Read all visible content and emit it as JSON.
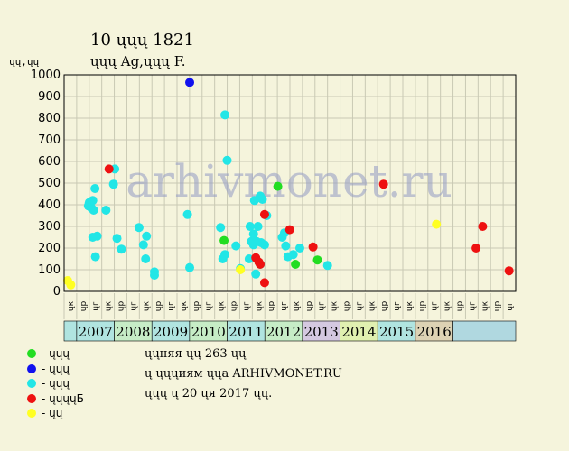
{
  "header": {
    "title": "10 ųųų 1821",
    "subtitle": "ųųų Ag,ųųų F.",
    "ylabel": "ųų,ųų"
  },
  "notes": [
    "ųųняя ųų 263 ųų",
    "ų ųųųиям ųųа ARHIVMONET.RU",
    "ųųų ų 20 ųя 2017 ųų."
  ],
  "legend": [
    {
      "label": "- ųųų",
      "color": "#22dd22"
    },
    {
      "label": "- ųųų",
      "color": "#1111ee"
    },
    {
      "label": "- ųųų",
      "color": "#22e6e6"
    },
    {
      "label": "- ųųųųБ",
      "color": "#ee1111"
    },
    {
      "label": "- ųų",
      "color": "#ffff22"
    }
  ],
  "chart_data": {
    "type": "scatter",
    "title": "10 ųųų 1821",
    "subtitle": "ųųų Ag,ųųų F.",
    "ylabel": "ųų,ųų",
    "ylim": [
      0,
      1000
    ],
    "yticks": [
      0,
      100,
      200,
      300,
      400,
      500,
      600,
      700,
      800,
      900,
      1000
    ],
    "grid": true,
    "watermark": "arhivmonet.ru",
    "quarter_labels": [
      "ųк",
      "ųр",
      "ųг",
      "ųк",
      "ųр",
      "ųг",
      "ųк",
      "ųр",
      "ųг",
      "ųк",
      "ųр",
      "ųг",
      "ųк",
      "ųр",
      "ųг",
      "ųк",
      "ųр",
      "ųг",
      "ųк",
      "ųр",
      "ųг",
      "ųк",
      "ųр",
      "ųг",
      "ųк",
      "ųр",
      "ųг",
      "ųк",
      "ųр",
      "ųг",
      "ųк",
      "ųр",
      "ųг",
      "ųк",
      "ųр",
      "ųг"
    ],
    "years": [
      {
        "label": "2007",
        "color": "#b0e4e0"
      },
      {
        "label": "2008",
        "color": "#c6ecc6"
      },
      {
        "label": "2009",
        "color": "#b0e4e0"
      },
      {
        "label": "2010",
        "color": "#c6ecc6"
      },
      {
        "label": "2011",
        "color": "#b0e4e0"
      },
      {
        "label": "2012",
        "color": "#c6ecc6"
      },
      {
        "label": "2013",
        "color": "#d4c8e0"
      },
      {
        "label": "2014",
        "color": "#e0f0b0"
      },
      {
        "label": "2015",
        "color": "#b0e4e0"
      },
      {
        "label": "2016",
        "color": "#ddd2b4"
      }
    ],
    "x_start": 2006.75,
    "x_end": 2017.0,
    "series": [
      {
        "color": "#22dd22",
        "points": [
          [
            2010.38,
            235
          ],
          [
            2011.6,
            485
          ],
          [
            2012.0,
            125
          ],
          [
            2012.5,
            145
          ]
        ]
      },
      {
        "color": "#1111ee",
        "points": [
          [
            2009.6,
            965
          ]
        ]
      },
      {
        "color": "#22e6e6",
        "points": [
          [
            2007.3,
            395
          ],
          [
            2007.32,
            410
          ],
          [
            2007.37,
            385
          ],
          [
            2007.4,
            420
          ],
          [
            2007.42,
            375
          ],
          [
            2007.45,
            475
          ],
          [
            2007.4,
            250
          ],
          [
            2007.5,
            255
          ],
          [
            2007.46,
            160
          ],
          [
            2007.7,
            375
          ],
          [
            2007.9,
            565
          ],
          [
            2007.87,
            495
          ],
          [
            2007.95,
            245
          ],
          [
            2008.05,
            195
          ],
          [
            2008.45,
            295
          ],
          [
            2008.55,
            215
          ],
          [
            2008.62,
            255
          ],
          [
            2008.6,
            150
          ],
          [
            2008.8,
            90
          ],
          [
            2008.8,
            75
          ],
          [
            2009.55,
            355
          ],
          [
            2009.6,
            110
          ],
          [
            2010.3,
            295
          ],
          [
            2010.4,
            815
          ],
          [
            2010.45,
            605
          ],
          [
            2010.4,
            170
          ],
          [
            2010.35,
            150
          ],
          [
            2010.65,
            210
          ],
          [
            2010.75,
            105
          ],
          [
            2010.95,
            150
          ],
          [
            2010.97,
            300
          ],
          [
            2011.0,
            230
          ],
          [
            2011.05,
            265
          ],
          [
            2011.07,
            420
          ],
          [
            2011.05,
            215
          ],
          [
            2011.15,
            300
          ],
          [
            2011.12,
            230
          ],
          [
            2011.2,
            440
          ],
          [
            2011.25,
            425
          ],
          [
            2011.22,
            225
          ],
          [
            2011.3,
            215
          ],
          [
            2011.35,
            350
          ],
          [
            2011.1,
            80
          ],
          [
            2011.2,
            125
          ],
          [
            2011.7,
            250
          ],
          [
            2011.75,
            270
          ],
          [
            2011.78,
            210
          ],
          [
            2011.83,
            160
          ],
          [
            2011.95,
            170
          ],
          [
            2012.1,
            200
          ],
          [
            2012.73,
            120
          ]
        ]
      },
      {
        "color": "#ee1111",
        "points": [
          [
            2007.77,
            565
          ],
          [
            2011.1,
            155
          ],
          [
            2011.17,
            135
          ],
          [
            2011.2,
            125
          ],
          [
            2011.3,
            355
          ],
          [
            2011.3,
            40
          ],
          [
            2011.87,
            285
          ],
          [
            2012.4,
            205
          ],
          [
            2014.0,
            495
          ],
          [
            2016.1,
            200
          ],
          [
            2016.25,
            300
          ],
          [
            2016.85,
            95
          ]
        ]
      },
      {
        "color": "#ffff22",
        "points": [
          [
            2006.83,
            50
          ],
          [
            2006.9,
            30
          ],
          [
            2010.75,
            100
          ],
          [
            2015.2,
            310
          ]
        ]
      }
    ]
  }
}
